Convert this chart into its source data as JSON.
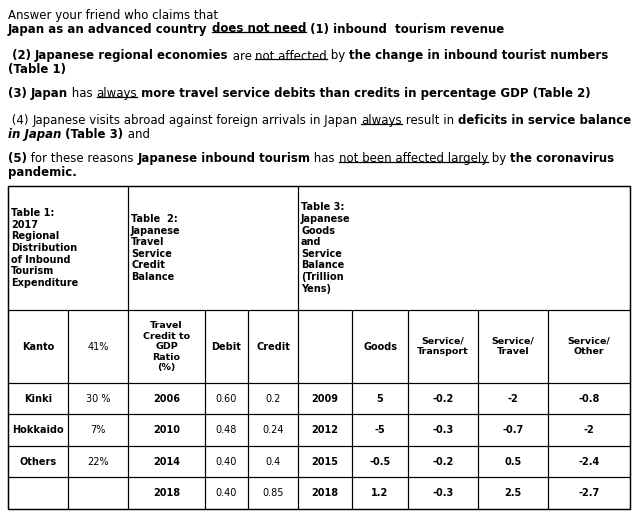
{
  "bg_color": "#ffffff",
  "table_rows": [
    {
      "region": "Kinki",
      "pct": "30 %",
      "year2": "2006",
      "debit": "0.60",
      "credit": "0.2",
      "year3": "2009",
      "goods": "5",
      "st": "-0.2",
      "sv": "-2",
      "so": "-0.8"
    },
    {
      "region": "Hokkaido",
      "pct": "7%",
      "year2": "2010",
      "debit": "0.48",
      "credit": "0.24",
      "year3": "2012",
      "goods": "-5",
      "st": "-0.3",
      "sv": "-0.7",
      "so": "-2"
    },
    {
      "region": "Others",
      "pct": "22%",
      "year2": "2014",
      "debit": "0.40",
      "credit": "0.4",
      "year3": "2015",
      "goods": "-0.5",
      "st": "-0.2",
      "sv": "0.5",
      "so": "-2.4"
    },
    {
      "region": "",
      "pct": "",
      "year2": "2018",
      "debit": "0.40",
      "credit": "0.85",
      "year3": "2018",
      "goods": "1.2",
      "st": "-0.3",
      "sv": "2.5",
      "so": "-2.7"
    }
  ]
}
